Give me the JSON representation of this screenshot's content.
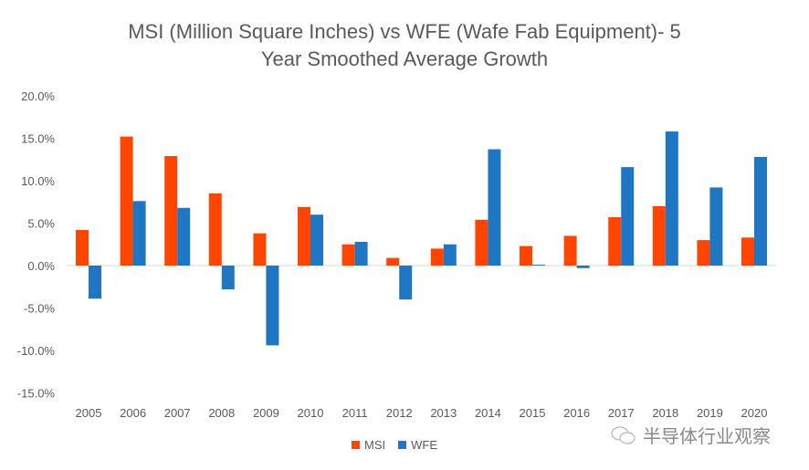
{
  "chart_data": {
    "type": "bar",
    "title": "MSI (Million Square Inches) vs WFE (Wafe Fab Equipment)- 5 Year Smoothed Average Growth",
    "title_lines": [
      "MSI (Million Square Inches) vs WFE (Wafe Fab Equipment)- 5",
      "Year Smoothed Average Growth"
    ],
    "categories": [
      "2005",
      "2006",
      "2007",
      "2008",
      "2009",
      "2010",
      "2011",
      "2012",
      "2013",
      "2014",
      "2015",
      "2016",
      "2017",
      "2018",
      "2019",
      "2020"
    ],
    "series": [
      {
        "name": "MSI",
        "color": "#FF4500",
        "values": [
          4.2,
          15.2,
          12.9,
          8.5,
          3.8,
          6.9,
          2.5,
          0.9,
          2.0,
          5.4,
          2.3,
          3.5,
          5.7,
          7.0,
          3.0,
          3.3
        ]
      },
      {
        "name": "WFE",
        "color": "#1F77C4",
        "values": [
          -3.9,
          7.6,
          6.8,
          -2.8,
          -9.4,
          6.0,
          2.8,
          -4.0,
          2.5,
          13.7,
          0.1,
          -0.3,
          11.6,
          15.8,
          9.2,
          12.8
        ]
      }
    ],
    "ylim": [
      -15,
      20
    ],
    "yticks": [
      20,
      15,
      10,
      5,
      0,
      -5,
      -10,
      -15
    ],
    "ytick_labels": [
      "20.0%",
      "15.0%",
      "10.0%",
      "5.0%",
      "0.0%",
      "-5.0%",
      "-10.0%",
      "-15.0%"
    ],
    "legend": "bottom",
    "grid": false
  },
  "watermark": "半导体行业观察"
}
